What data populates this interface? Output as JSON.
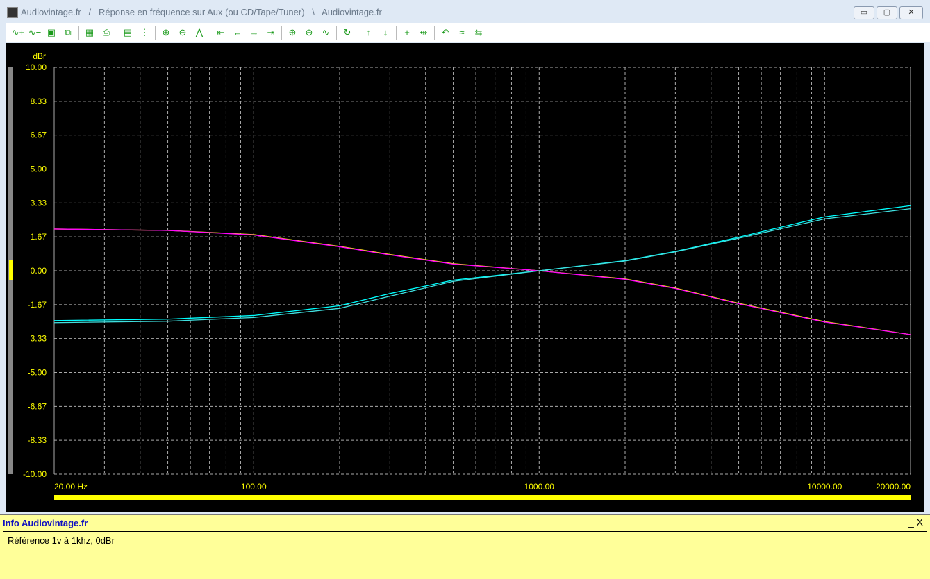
{
  "window": {
    "title": "Audiovintage.fr   /   Réponse en fréquence sur Aux (ou CD/Tape/Tuner)   \\   Audiovintage.fr",
    "minimize": "▭",
    "maximize": "▢",
    "close": "✕"
  },
  "toolbar": {
    "icons": [
      "add-curve",
      "remove-curve",
      "save",
      "copy",
      "|",
      "graph-view",
      "print",
      "|",
      "calendar-edit",
      "numbers",
      "|",
      "zoom-in-x",
      "zoom-out-x",
      "fit",
      "|",
      "shift-left-end",
      "shift-left",
      "shift-right",
      "shift-right-end",
      "|",
      "zoom-in-y",
      "zoom-out-y",
      "center",
      "|",
      "refresh",
      "|",
      "curve-up",
      "curve-down",
      "|",
      "add-marker",
      "marker-move",
      "|",
      "undo",
      "reference-line",
      "cursor"
    ]
  },
  "info": {
    "title": "Info Audiovintage.fr",
    "message": "Référence 1v à 1khz, 0dBr",
    "close": "_ X"
  },
  "chart_data": {
    "type": "line",
    "ylabel": "dBr",
    "xscale": "log",
    "xlim": [
      20,
      20000
    ],
    "ylim": [
      -10,
      10
    ],
    "yticks": [
      "10.00",
      "8.33",
      "6.67",
      "5.00",
      "3.33",
      "1.67",
      "0.00",
      "-1.67",
      "-3.33",
      "-5.00",
      "-6.67",
      "-8.33",
      "-10.00"
    ],
    "xticks": [
      {
        "v": 20,
        "label": "20.00 Hz"
      },
      {
        "v": 100,
        "label": "100.00"
      },
      {
        "v": 1000,
        "label": "1000.00"
      },
      {
        "v": 10000,
        "label": "10000.00"
      },
      {
        "v": 20000,
        "label": "20000.00"
      }
    ],
    "grid": true,
    "x": [
      20,
      50,
      100,
      200,
      300,
      500,
      1000,
      2000,
      3000,
      5000,
      10000,
      20000
    ],
    "series": [
      {
        "color": "#ffff00",
        "values": [
          2.05,
          1.98,
          1.78,
          1.2,
          0.8,
          0.35,
          0,
          -0.4,
          -0.85,
          -1.6,
          -2.5,
          -3.14
        ]
      },
      {
        "color": "#ff00ff",
        "values": [
          2.05,
          1.98,
          1.76,
          1.18,
          0.78,
          0.33,
          0,
          -0.42,
          -0.87,
          -1.62,
          -2.52,
          -3.14
        ]
      },
      {
        "color": "#00ffff",
        "values": [
          -2.45,
          -2.38,
          -2.2,
          -1.72,
          -1.12,
          -0.46,
          0,
          0.5,
          0.95,
          1.65,
          2.65,
          3.2
        ]
      },
      {
        "color": "#40e0e0",
        "values": [
          -2.55,
          -2.48,
          -2.3,
          -1.85,
          -1.25,
          -0.52,
          0,
          0.48,
          0.93,
          1.6,
          2.55,
          3.05
        ]
      }
    ]
  }
}
